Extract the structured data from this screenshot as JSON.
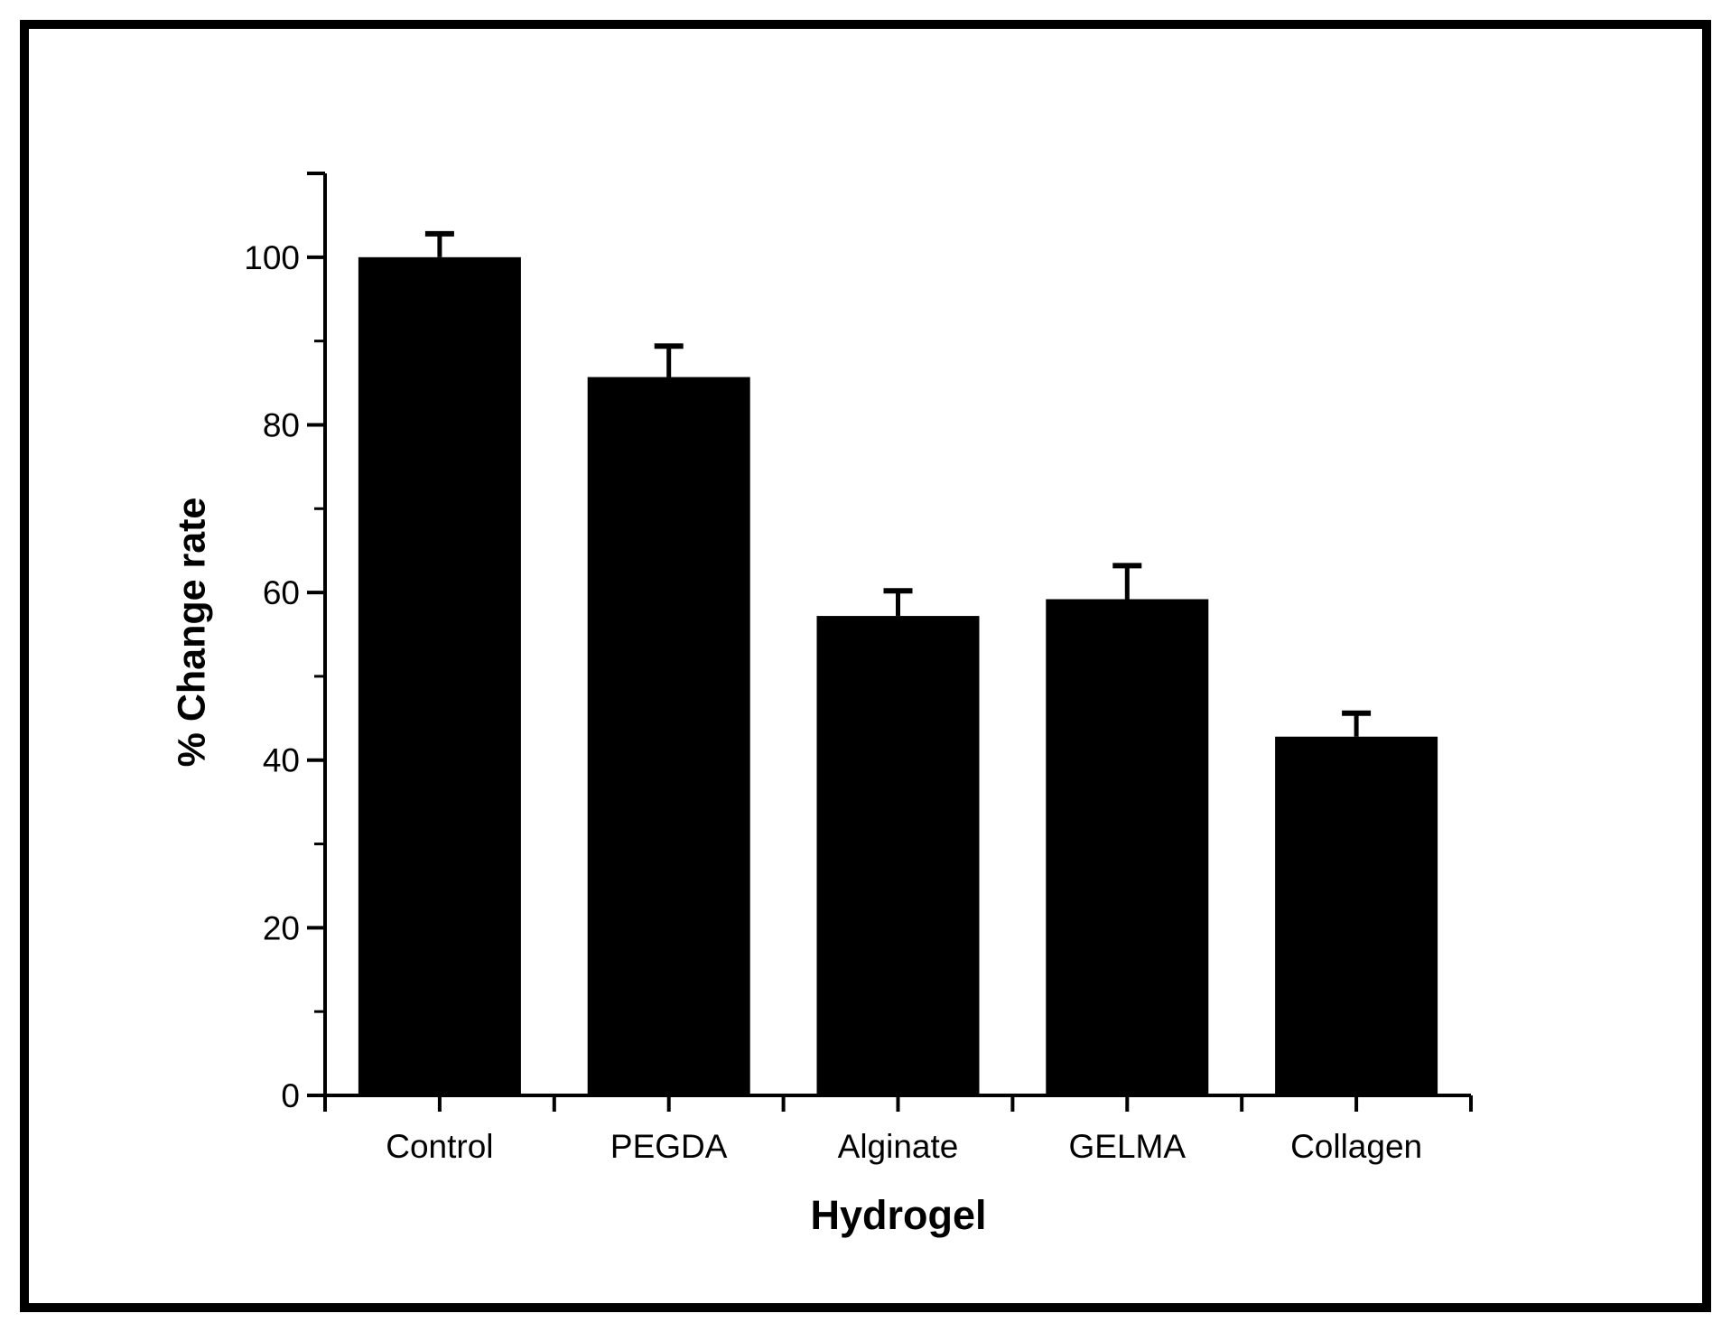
{
  "figure": {
    "background": "#ffffff",
    "frame_color": "#000000"
  },
  "chart_data": {
    "type": "bar",
    "categories": [
      "Control",
      "PEGDA",
      "Alginate",
      "GELMA",
      "Collagen"
    ],
    "values": [
      100.0,
      85.7,
      57.2,
      59.2,
      42.8
    ],
    "errors_plus": [
      2.8,
      3.7,
      3.0,
      4.0,
      2.8
    ],
    "title": "",
    "xlabel": "Hydrogel",
    "ylabel": "% Change rate",
    "ylim": [
      0,
      110
    ],
    "ytick_major_step": 20,
    "ytick_minor_step": 10,
    "ytick_labels": [
      "0",
      "20",
      "40",
      "60",
      "80",
      "100"
    ],
    "bar_color": "#000000",
    "axis_color": "#000000",
    "error_bar_color": "#000000",
    "grid": false,
    "legend": null
  }
}
